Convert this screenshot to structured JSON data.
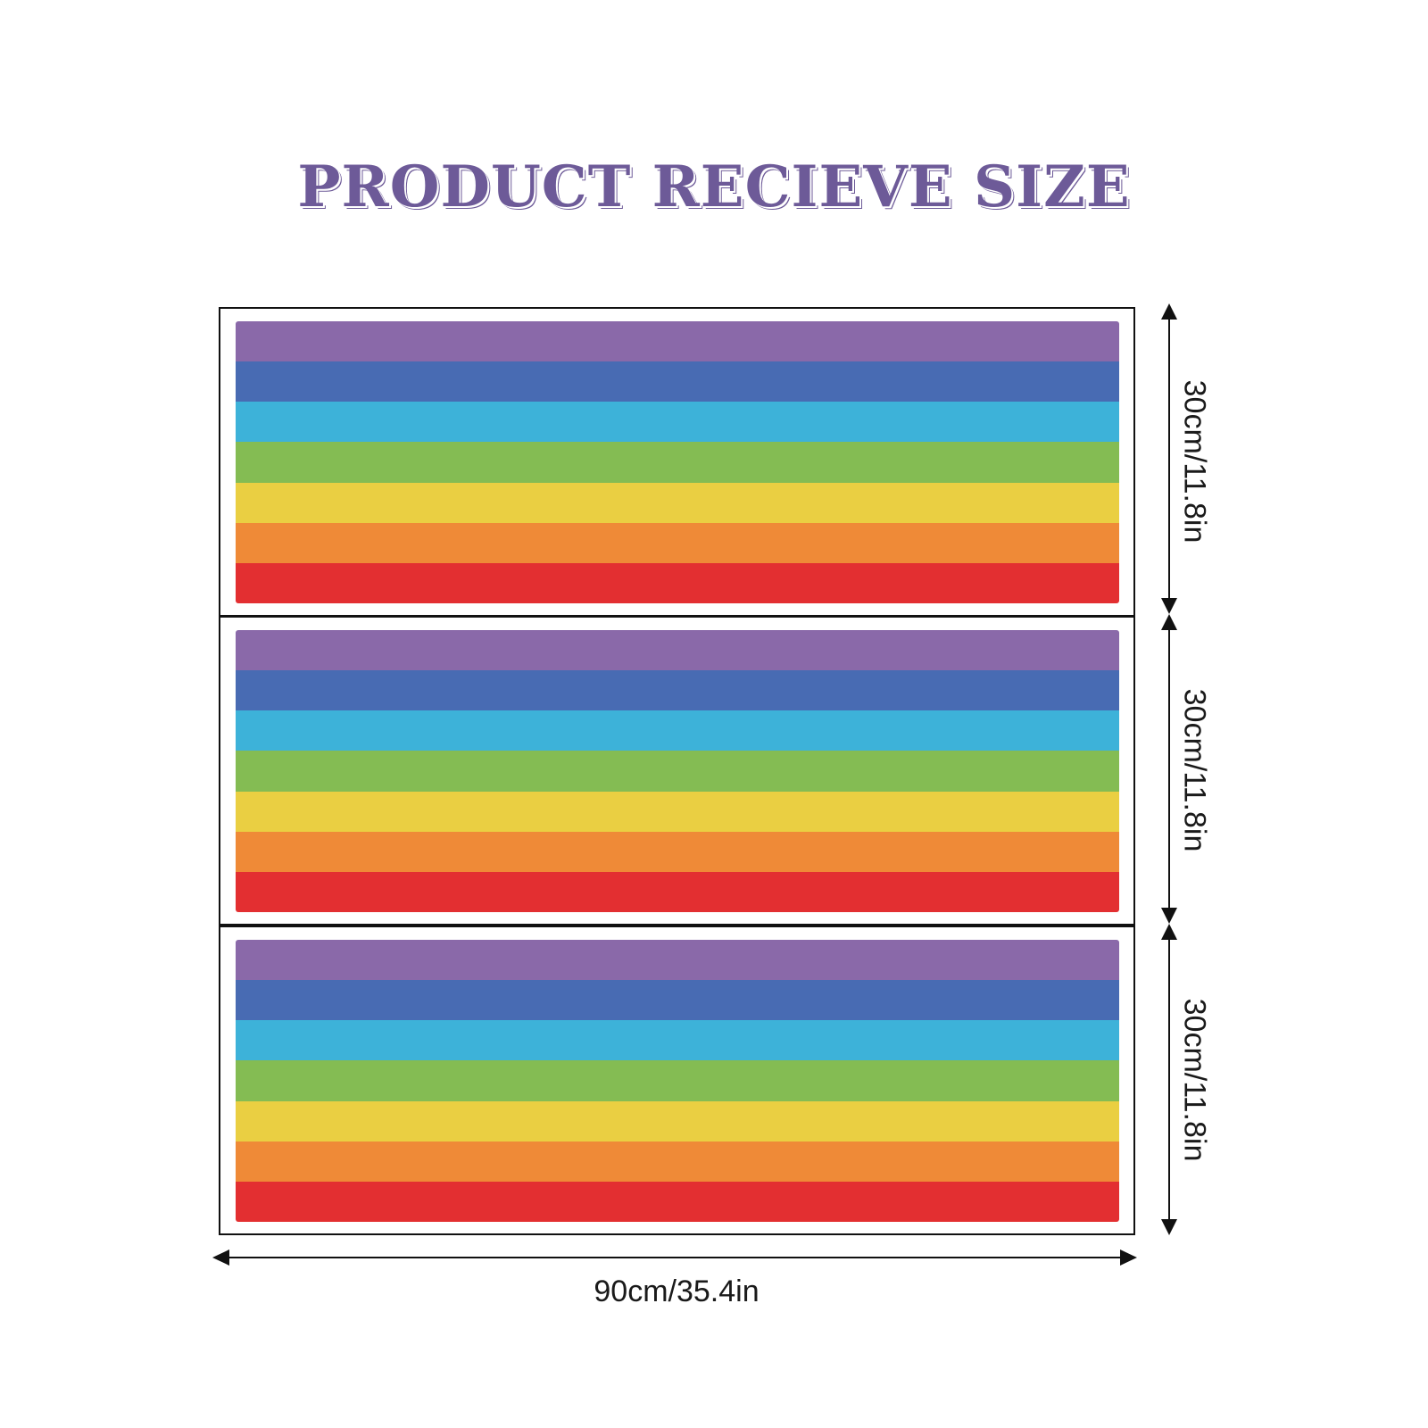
{
  "title": "PRODUCT RECIEVE SIZE",
  "panels": [
    {
      "height_label": "30cm/11.8in"
    },
    {
      "height_label": "30cm/11.8in"
    },
    {
      "height_label": "30cm/11.8in"
    }
  ],
  "width_label": "90cm/35.4in",
  "stripe_colors": [
    "#8a69a9",
    "#486bb3",
    "#3db2d9",
    "#84bc53",
    "#eacf42",
    "#ef8a37",
    "#e32f31"
  ]
}
